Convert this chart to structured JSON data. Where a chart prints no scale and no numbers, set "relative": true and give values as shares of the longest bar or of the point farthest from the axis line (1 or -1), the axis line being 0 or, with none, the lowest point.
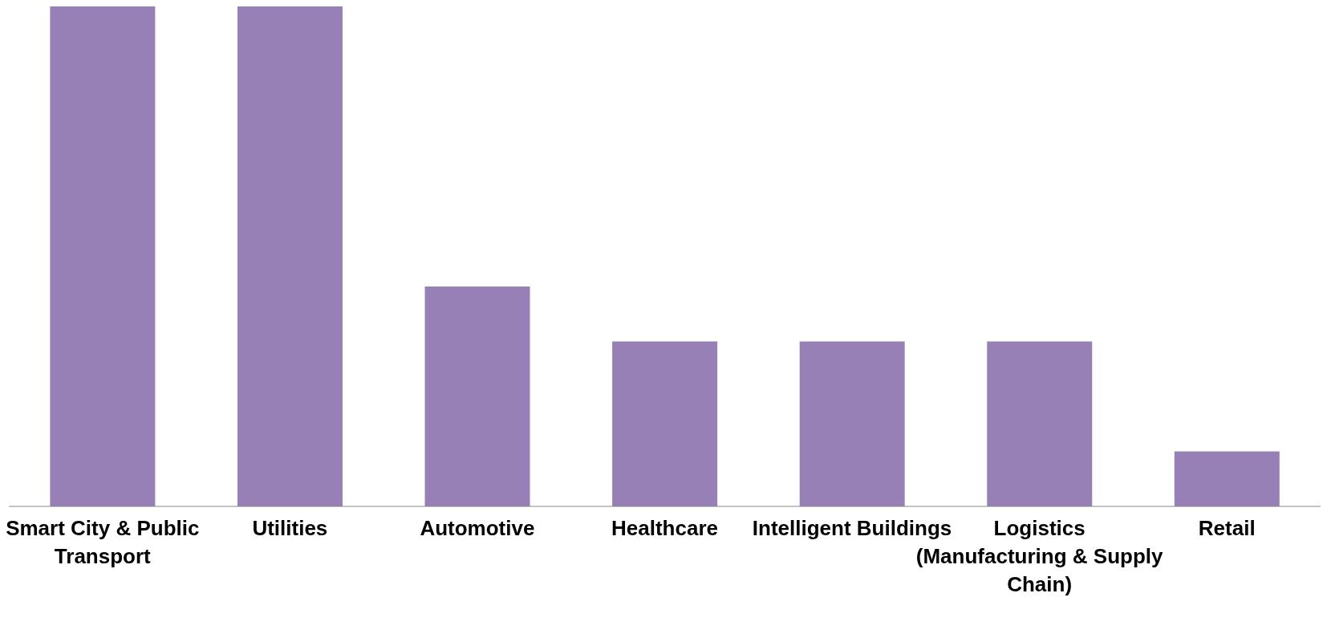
{
  "chart_data": {
    "type": "bar",
    "relative": true,
    "categories": [
      "Smart City & Public Transport",
      "Utilities",
      "Automotive",
      "Healthcare",
      "Intelligent Buildings",
      "Logistics (Manufacturing & Supply Chain)",
      "Retail"
    ],
    "values": [
      1,
      1,
      0.44,
      0.33,
      0.33,
      0.33,
      0.11
    ],
    "color": "#9680b6",
    "grid": false,
    "legend": false
  }
}
